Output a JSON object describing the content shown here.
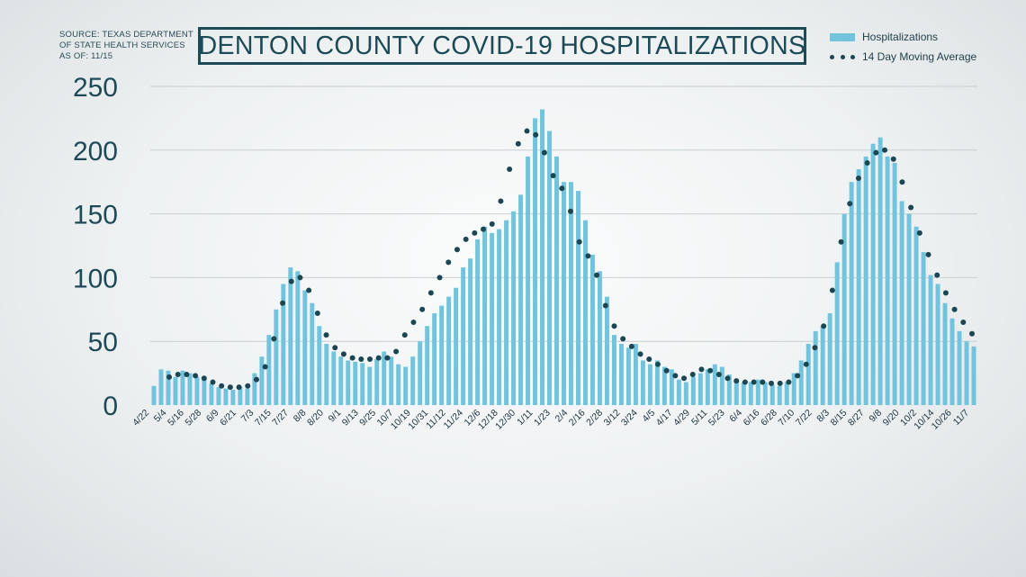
{
  "source_lines": [
    "SOURCE: TEXAS DEPARTMENT",
    "OF STATE HEALTH SERVICES",
    "AS OF: 11/15"
  ],
  "colors": {
    "bar": "#72c3db",
    "dots": "#1b4652",
    "title": "#1d4a57",
    "grid": "#c7cfd2"
  },
  "chart_data": {
    "type": "bar",
    "title": "DENTON COUNTY COVID-19 HOSPITALIZATIONS",
    "xlabel": "",
    "ylabel": "",
    "ylim": [
      0,
      250
    ],
    "yticks": [
      0,
      50,
      100,
      150,
      200,
      250
    ],
    "grid": true,
    "legend_position": "top-right",
    "tick_labels": [
      "4/22",
      "5/4",
      "5/16",
      "5/28",
      "6/9",
      "6/21",
      "7/3",
      "7/15",
      "7/27",
      "8/8",
      "8/20",
      "9/1",
      "9/13",
      "9/25",
      "10/7",
      "10/19",
      "10/31",
      "11/12",
      "11/24",
      "12/6",
      "12/18",
      "12/30",
      "1/11",
      "1/23",
      "2/4",
      "2/16",
      "2/28",
      "3/12",
      "3/24",
      "4/5",
      "4/17",
      "4/29",
      "5/11",
      "5/23",
      "6/4",
      "6/16",
      "6/28",
      "7/10",
      "7/22",
      "8/3",
      "8/15",
      "8/27",
      "9/8",
      "9/20",
      "10/2",
      "10/14",
      "10/26",
      "11/7"
    ],
    "series": [
      {
        "name": "Hospitalizations",
        "type": "bar",
        "values": [
          15,
          28,
          27,
          22,
          27,
          25,
          22,
          20,
          17,
          14,
          13,
          12,
          14,
          13,
          25,
          38,
          55,
          75,
          95,
          108,
          105,
          90,
          80,
          62,
          48,
          42,
          38,
          35,
          34,
          33,
          30,
          36,
          42,
          38,
          32,
          30,
          38,
          50,
          62,
          72,
          78,
          85,
          92,
          108,
          115,
          130,
          140,
          135,
          138,
          145,
          152,
          165,
          195,
          225,
          232,
          215,
          195,
          175,
          175,
          168,
          145,
          118,
          105,
          85,
          55,
          48,
          45,
          48,
          35,
          32,
          35,
          30,
          28,
          20,
          18,
          22,
          25,
          28,
          32,
          30,
          24,
          20,
          18,
          18,
          20,
          18,
          16,
          15,
          18,
          25,
          35,
          48,
          58,
          62,
          72,
          112,
          150,
          175,
          185,
          195,
          205,
          210,
          195,
          190,
          160,
          150,
          140,
          120,
          102,
          95,
          80,
          68,
          58,
          50,
          46
        ]
      },
      {
        "name": "14 Day Moving Average",
        "type": "line",
        "values": [
          22,
          24,
          24,
          23,
          21,
          18,
          15,
          14,
          14,
          15,
          20,
          30,
          52,
          80,
          97,
          100,
          90,
          72,
          55,
          45,
          40,
          37,
          36,
          36,
          37,
          37,
          42,
          55,
          65,
          75,
          88,
          100,
          112,
          122,
          130,
          135,
          138,
          142,
          160,
          185,
          205,
          215,
          212,
          198,
          180,
          170,
          152,
          128,
          117,
          102,
          78,
          62,
          52,
          46,
          40,
          36,
          32,
          27,
          23,
          21,
          24,
          28,
          27,
          24,
          21,
          19,
          18,
          18,
          18,
          17,
          17,
          18,
          23,
          32,
          45,
          62,
          90,
          128,
          158,
          178,
          190,
          198,
          200,
          193,
          175,
          155,
          135,
          118,
          102,
          88,
          75,
          65,
          56
        ]
      }
    ]
  }
}
